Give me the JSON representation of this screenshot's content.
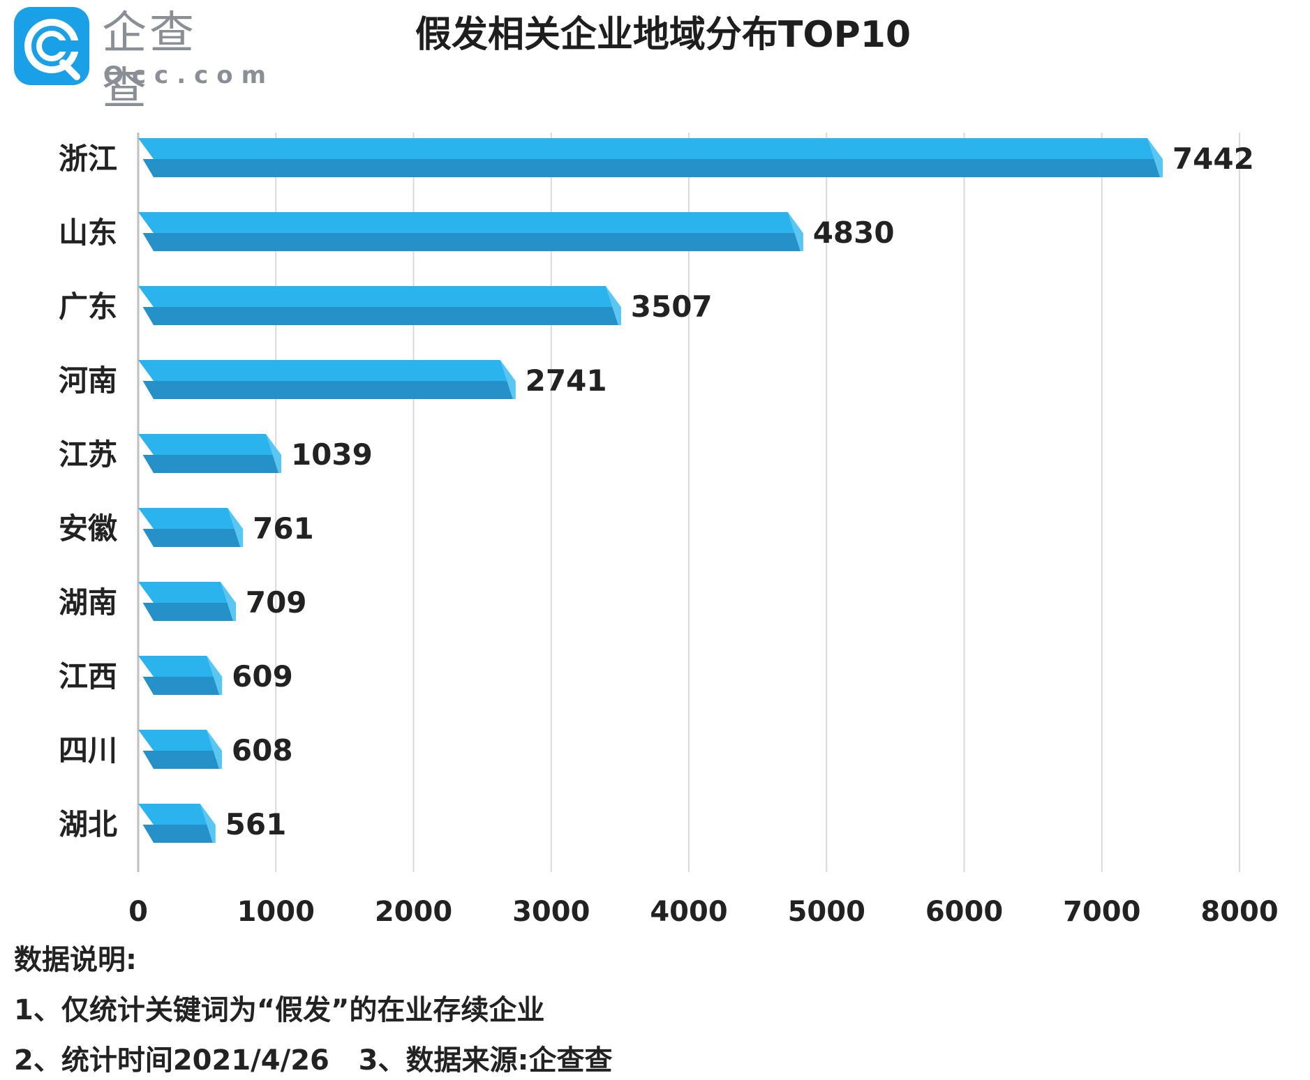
{
  "brand": {
    "name_cn": "企查查",
    "name_en": "Qcc.com",
    "logo_color": "#1aa0e6"
  },
  "chart_data": {
    "type": "bar",
    "orientation": "horizontal",
    "title": "假发相关企业地域分布TOP10",
    "categories": [
      "浙江",
      "山东",
      "广东",
      "河南",
      "江苏",
      "安徽",
      "湖南",
      "江西",
      "四川",
      "湖北"
    ],
    "values": [
      7442,
      4830,
      3507,
      2741,
      1039,
      761,
      709,
      609,
      608,
      561
    ],
    "xlim": [
      0,
      8000
    ],
    "xticks": [
      0,
      1000,
      2000,
      3000,
      4000,
      5000,
      6000,
      7000,
      8000
    ],
    "grid": true,
    "bar_color": "#2bb3ee",
    "bar_shade_color": "#2591c8"
  },
  "notes": {
    "heading": "数据说明:",
    "line1": "1、仅统计关键词为“假发”的在业存续企业",
    "line2": "2、统计时间2021/4/26   3、数据来源:企查查"
  }
}
